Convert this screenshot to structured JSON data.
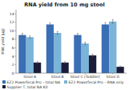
{
  "chart_data": {
    "type": "bar",
    "title": "RNA yield from 10 mg stool",
    "ylabel": "RNA yield (μg)",
    "categories": [
      "Stool A",
      "Stool B",
      "Stool C (Toddler)",
      "Stool D"
    ],
    "series": [
      {
        "name": "EZ2 Powerfecal Pro – total NA",
        "color": "#3a6eb5",
        "values": [
          9.0,
          11.5,
          9.0,
          11.5
        ],
        "errors": [
          0.35,
          0.4,
          0.35,
          0.45
        ]
      },
      {
        "name": "EZ2 Powerfecal Pro – RNA only",
        "color": "#7ab4d8",
        "values": [
          8.5,
          9.5,
          7.0,
          12.2
        ],
        "errors": [
          0.3,
          0.35,
          0.3,
          0.45
        ]
      },
      {
        "name": "Supplier T, total NA Kit",
        "color": "#1c1c3a",
        "values": [
          2.5,
          2.5,
          4.2,
          1.5
        ],
        "errors": [
          0.2,
          0.2,
          0.3,
          0.15
        ]
      }
    ],
    "ylim": [
      0,
      15
    ],
    "yticks": [
      0,
      2,
      4,
      6,
      8,
      10,
      12,
      14
    ],
    "grid": false,
    "legend": "bottom"
  }
}
